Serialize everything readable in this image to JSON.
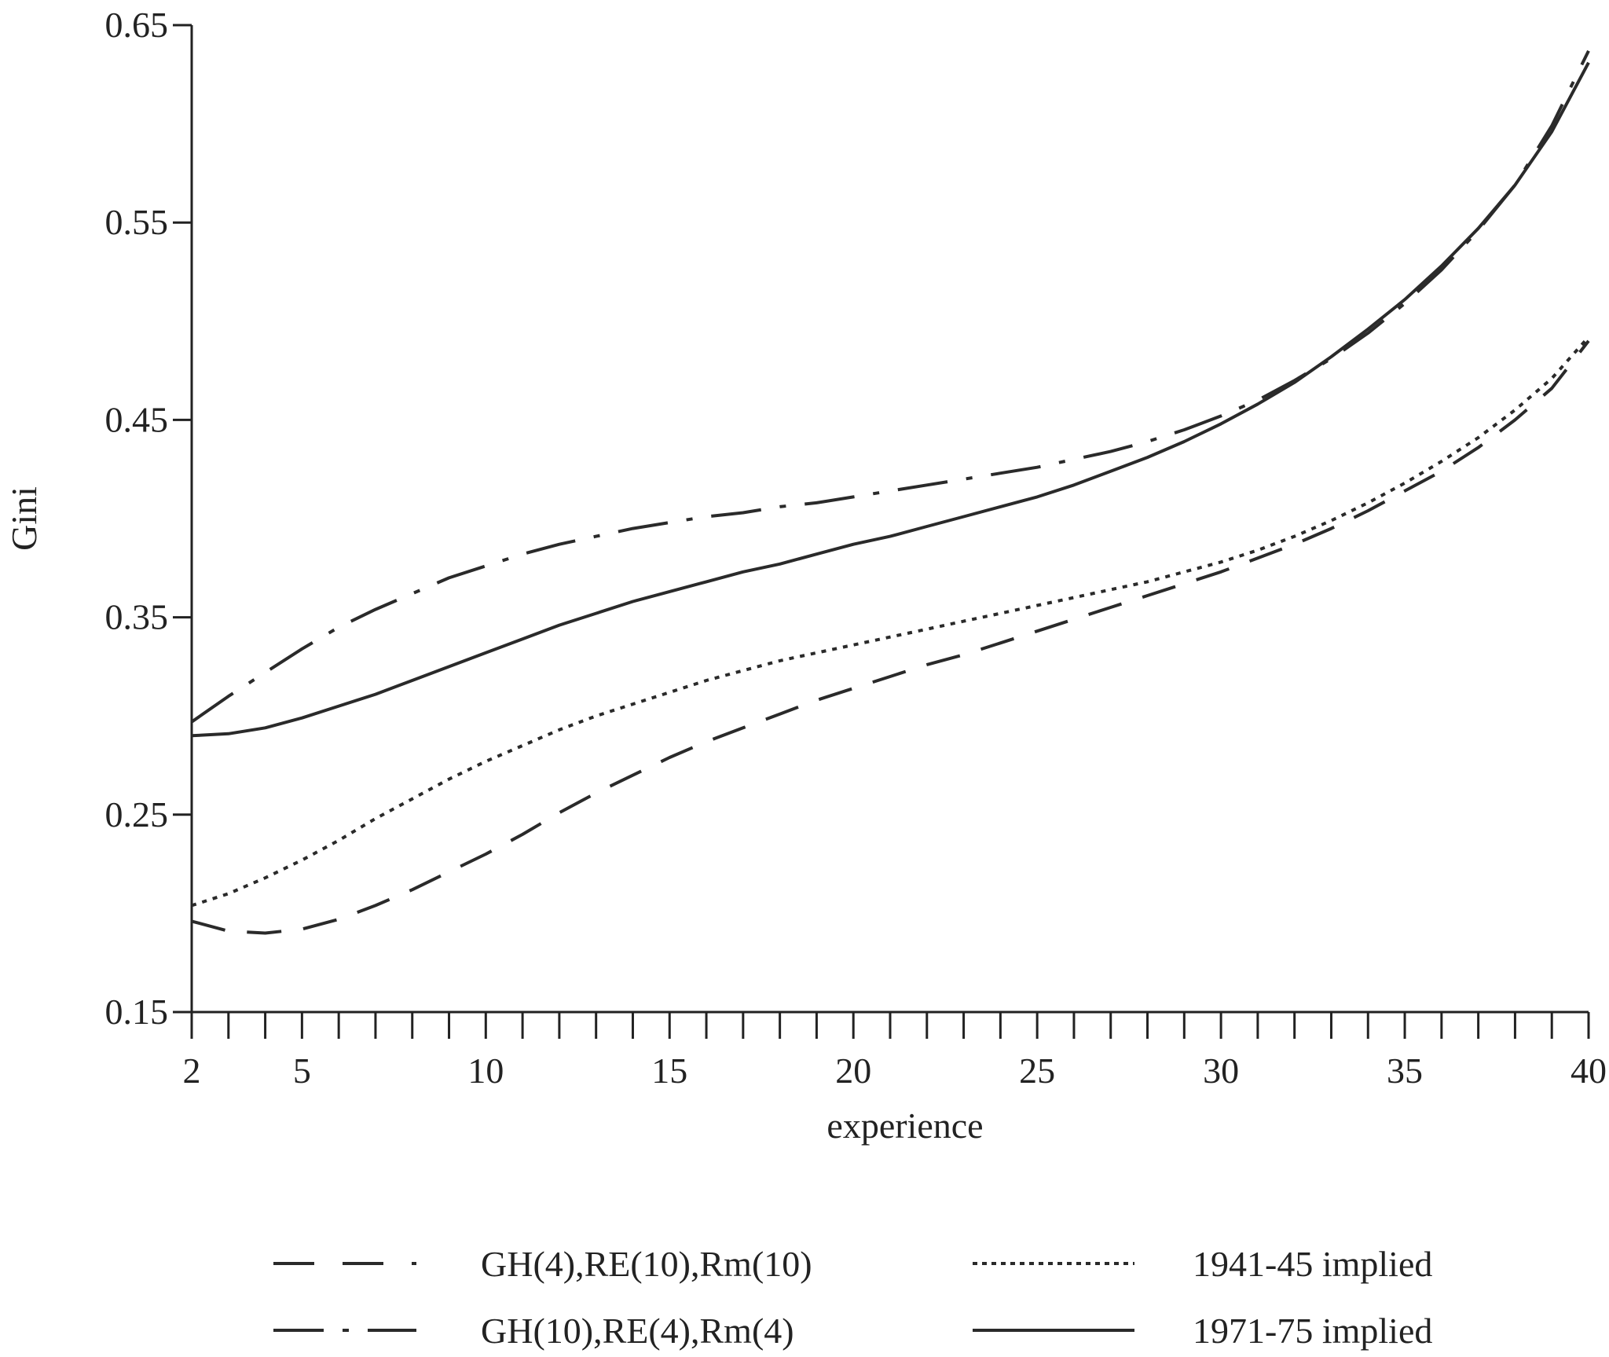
{
  "chart_data": {
    "type": "line",
    "xlabel": "experience",
    "ylabel": "Gini",
    "xlim": [
      2,
      40
    ],
    "ylim": [
      0.15,
      0.65
    ],
    "xticks_labeled": [
      2,
      5,
      10,
      15,
      20,
      25,
      30,
      35,
      40
    ],
    "xticks_minor": [
      3,
      4,
      6,
      7,
      8,
      9,
      11,
      12,
      13,
      14,
      16,
      17,
      18,
      19,
      21,
      22,
      23,
      24,
      26,
      27,
      28,
      29,
      31,
      32,
      33,
      34,
      36,
      37,
      38,
      39
    ],
    "yticks": [
      "0.15",
      "0.25",
      "0.35",
      "0.45",
      "0.55",
      "0.65"
    ],
    "grid": false,
    "legend_position": "bottom",
    "series": [
      {
        "name": "GH(4),RE(10),Rm(10)",
        "style": "dashed",
        "x": [
          2,
          3,
          4,
          5,
          6,
          7,
          8,
          9,
          10,
          11,
          12,
          13,
          14,
          15,
          16,
          17,
          18,
          19,
          20,
          21,
          22,
          23,
          24,
          25,
          26,
          27,
          28,
          29,
          30,
          31,
          32,
          33,
          34,
          35,
          36,
          37,
          38,
          39,
          40
        ],
        "y": [
          0.196,
          0.191,
          0.19,
          0.192,
          0.197,
          0.204,
          0.212,
          0.221,
          0.23,
          0.24,
          0.251,
          0.261,
          0.27,
          0.279,
          0.287,
          0.294,
          0.301,
          0.308,
          0.314,
          0.32,
          0.326,
          0.331,
          0.337,
          0.343,
          0.349,
          0.355,
          0.361,
          0.367,
          0.373,
          0.38,
          0.387,
          0.395,
          0.404,
          0.414,
          0.424,
          0.436,
          0.45,
          0.466,
          0.49
        ]
      },
      {
        "name": "GH(10),RE(4),Rm(4)",
        "style": "dash-dot",
        "x": [
          2,
          3,
          4,
          5,
          6,
          7,
          8,
          9,
          10,
          11,
          12,
          13,
          14,
          15,
          16,
          17,
          18,
          19,
          20,
          21,
          22,
          23,
          24,
          25,
          26,
          27,
          28,
          29,
          30,
          31,
          32,
          33,
          34,
          35,
          36,
          37,
          38,
          39,
          40
        ],
        "y": [
          0.297,
          0.31,
          0.322,
          0.334,
          0.345,
          0.354,
          0.362,
          0.37,
          0.376,
          0.382,
          0.387,
          0.391,
          0.395,
          0.398,
          0.401,
          0.403,
          0.406,
          0.408,
          0.411,
          0.414,
          0.417,
          0.42,
          0.423,
          0.426,
          0.43,
          0.434,
          0.439,
          0.445,
          0.452,
          0.46,
          0.47,
          0.481,
          0.494,
          0.509,
          0.526,
          0.546,
          0.569,
          0.599,
          0.637
        ]
      },
      {
        "name": "1941-45 implied",
        "style": "dotted",
        "x": [
          2,
          3,
          4,
          5,
          6,
          7,
          8,
          9,
          10,
          11,
          12,
          13,
          14,
          15,
          16,
          17,
          18,
          19,
          20,
          21,
          22,
          23,
          24,
          25,
          26,
          27,
          28,
          29,
          30,
          31,
          32,
          33,
          34,
          35,
          36,
          37,
          38,
          39,
          40
        ],
        "y": [
          0.204,
          0.21,
          0.218,
          0.227,
          0.237,
          0.248,
          0.258,
          0.268,
          0.277,
          0.285,
          0.293,
          0.3,
          0.306,
          0.312,
          0.318,
          0.323,
          0.328,
          0.332,
          0.336,
          0.34,
          0.344,
          0.348,
          0.352,
          0.356,
          0.36,
          0.364,
          0.368,
          0.373,
          0.378,
          0.384,
          0.391,
          0.399,
          0.408,
          0.418,
          0.429,
          0.441,
          0.455,
          0.471,
          0.492
        ]
      },
      {
        "name": "1971-75 implied",
        "style": "solid",
        "x": [
          2,
          3,
          4,
          5,
          6,
          7,
          8,
          9,
          10,
          11,
          12,
          13,
          14,
          15,
          16,
          17,
          18,
          19,
          20,
          21,
          22,
          23,
          24,
          25,
          26,
          27,
          28,
          29,
          30,
          31,
          32,
          33,
          34,
          35,
          36,
          37,
          38,
          39,
          40
        ],
        "y": [
          0.29,
          0.291,
          0.294,
          0.299,
          0.305,
          0.311,
          0.318,
          0.325,
          0.332,
          0.339,
          0.346,
          0.352,
          0.358,
          0.363,
          0.368,
          0.373,
          0.377,
          0.382,
          0.387,
          0.391,
          0.396,
          0.401,
          0.406,
          0.411,
          0.417,
          0.424,
          0.431,
          0.439,
          0.448,
          0.458,
          0.469,
          0.482,
          0.496,
          0.511,
          0.528,
          0.547,
          0.569,
          0.596,
          0.631
        ]
      }
    ]
  },
  "colors": {
    "line": "#2a2a2a",
    "axis": "#222222"
  }
}
